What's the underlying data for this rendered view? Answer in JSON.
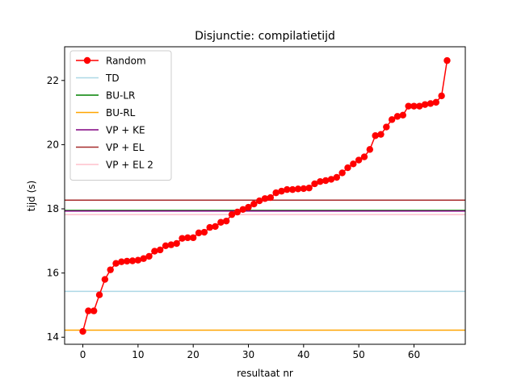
{
  "chart_data": {
    "type": "line",
    "title": "Disjunctie: compilatietijd",
    "xlabel": "resultaat nr",
    "ylabel": "tijd (s)",
    "xlim": [
      -3.3,
      69.3
    ],
    "ylim": [
      13.78,
      23.05
    ],
    "xticks": [
      0,
      10,
      20,
      30,
      40,
      50,
      60
    ],
    "yticks": [
      14,
      16,
      18,
      20,
      22
    ],
    "legend_position": "top-left",
    "grid": false,
    "series": [
      {
        "name": "Random",
        "kind": "line-marker",
        "color": "#ff0000",
        "x": [
          0,
          1,
          2,
          3,
          4,
          5,
          6,
          7,
          8,
          9,
          10,
          11,
          12,
          13,
          14,
          15,
          16,
          17,
          18,
          19,
          20,
          21,
          22,
          23,
          24,
          25,
          26,
          27,
          28,
          29,
          30,
          31,
          32,
          33,
          34,
          35,
          36,
          37,
          38,
          39,
          40,
          41,
          42,
          43,
          44,
          45,
          46,
          47,
          48,
          49,
          50,
          51,
          52,
          53,
          54,
          55,
          56,
          57,
          58,
          59,
          60,
          61,
          62,
          63,
          64,
          65,
          66
        ],
        "y": [
          14.18,
          14.82,
          14.82,
          15.32,
          15.8,
          16.1,
          16.3,
          16.35,
          16.37,
          16.38,
          16.4,
          16.45,
          16.52,
          16.68,
          16.72,
          16.85,
          16.88,
          16.92,
          17.08,
          17.1,
          17.1,
          17.25,
          17.27,
          17.42,
          17.45,
          17.58,
          17.62,
          17.82,
          17.9,
          17.98,
          18.05,
          18.15,
          18.25,
          18.32,
          18.35,
          18.5,
          18.55,
          18.6,
          18.6,
          18.62,
          18.63,
          18.65,
          18.78,
          18.85,
          18.88,
          18.92,
          18.98,
          19.12,
          19.28,
          19.4,
          19.52,
          19.62,
          19.85,
          20.28,
          20.32,
          20.55,
          20.78,
          20.88,
          20.92,
          21.2,
          21.2,
          21.2,
          21.25,
          21.28,
          21.32,
          21.52,
          22.62
        ]
      },
      {
        "name": "TD",
        "kind": "hline",
        "color": "#add8e6",
        "y": 15.43
      },
      {
        "name": "BU-LR",
        "kind": "hline",
        "color": "#008000",
        "y": 17.95
      },
      {
        "name": "BU-RL",
        "kind": "hline",
        "color": "#ffa500",
        "y": 14.22
      },
      {
        "name": "VP + KE",
        "kind": "hline",
        "color": "#800080",
        "y": 17.93
      },
      {
        "name": "VP + EL",
        "kind": "hline",
        "color": "#a52a2a",
        "y": 18.27
      },
      {
        "name": "VP + EL 2",
        "kind": "hline",
        "color": "#ffc0cb",
        "y": 17.82
      }
    ]
  }
}
